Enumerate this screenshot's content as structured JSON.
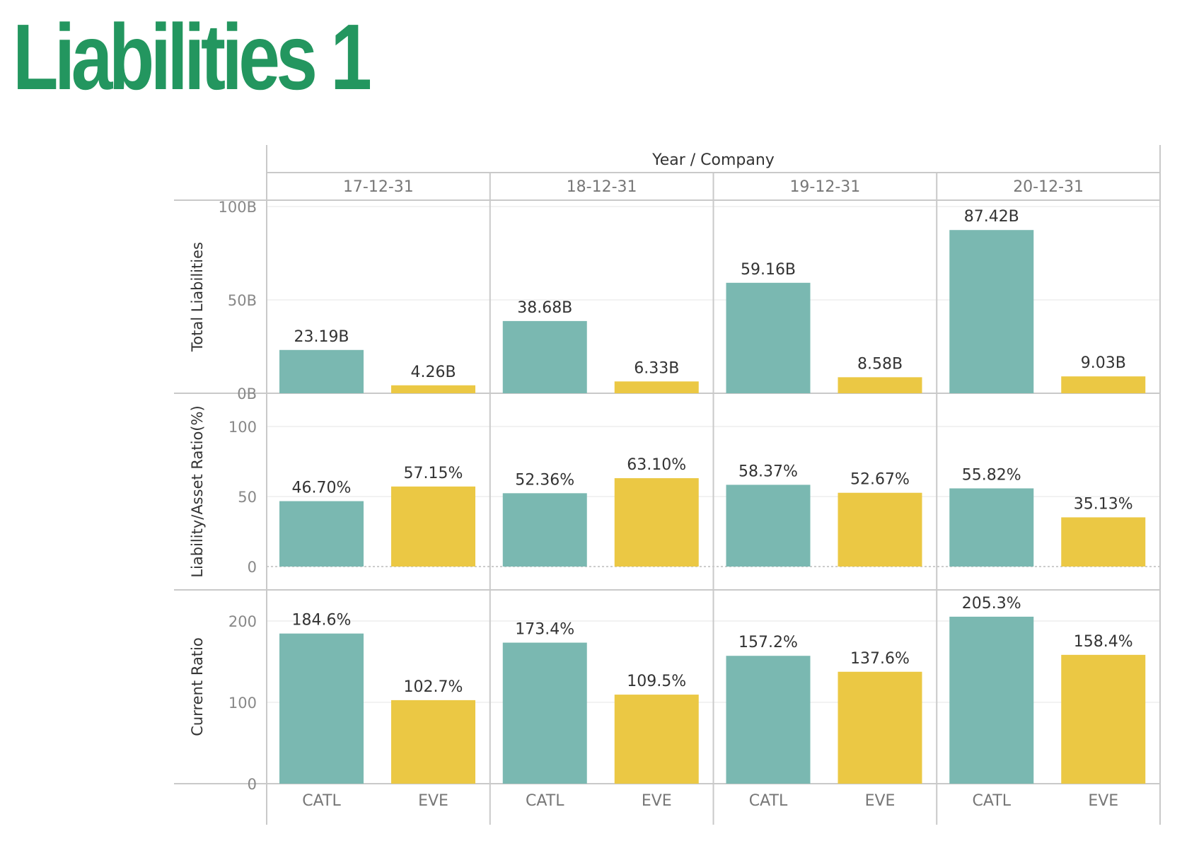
{
  "page": {
    "title": "Liabilities 1",
    "title_color": "#23965f"
  },
  "chart_data": {
    "type": "bar",
    "header_title": "Year / Company",
    "years": [
      "17-12-31",
      "18-12-31",
      "19-12-31",
      "20-12-31"
    ],
    "companies": [
      "CATL",
      "EVE"
    ],
    "colors": {
      "CATL": "#7ab8b1",
      "EVE": "#ebc844"
    },
    "rows": [
      {
        "ylabel": "Total Liabilities",
        "ylim": [
          0,
          100
        ],
        "ticks": [
          0,
          50,
          100
        ],
        "tick_labels": [
          "0B",
          "50B",
          "100B"
        ],
        "values": [
          [
            23.19,
            4.26
          ],
          [
            38.68,
            6.33
          ],
          [
            59.16,
            8.58
          ],
          [
            87.42,
            9.03
          ]
        ],
        "labels": [
          [
            "23.19B",
            "4.26B"
          ],
          [
            "38.68B",
            "6.33B"
          ],
          [
            "59.16B",
            "8.58B"
          ],
          [
            "87.42B",
            "9.03B"
          ]
        ]
      },
      {
        "ylabel": "Liability/Asset Ratio(%)",
        "ylim": [
          0,
          100
        ],
        "ticks": [
          0,
          50,
          100
        ],
        "tick_labels": [
          "0",
          "50",
          "100"
        ],
        "values": [
          [
            46.7,
            57.15
          ],
          [
            52.36,
            63.1
          ],
          [
            58.37,
            52.67
          ],
          [
            55.82,
            35.13
          ]
        ],
        "labels": [
          [
            "46.70%",
            "57.15%"
          ],
          [
            "52.36%",
            "63.10%"
          ],
          [
            "58.37%",
            "52.67%"
          ],
          [
            "55.82%",
            "35.13%"
          ]
        ]
      },
      {
        "ylabel": "Current Ratio",
        "ylim": [
          0,
          200
        ],
        "ticks": [
          0,
          100,
          200
        ],
        "tick_labels": [
          "0",
          "100",
          "200"
        ],
        "values": [
          [
            184.6,
            102.7
          ],
          [
            173.4,
            109.5
          ],
          [
            157.2,
            137.6
          ],
          [
            205.3,
            158.4
          ]
        ],
        "labels": [
          [
            "184.6%",
            "102.7%"
          ],
          [
            "173.4%",
            "109.5%"
          ],
          [
            "157.2%",
            "137.6%"
          ],
          [
            "205.3%",
            "158.4%"
          ]
        ]
      }
    ]
  }
}
